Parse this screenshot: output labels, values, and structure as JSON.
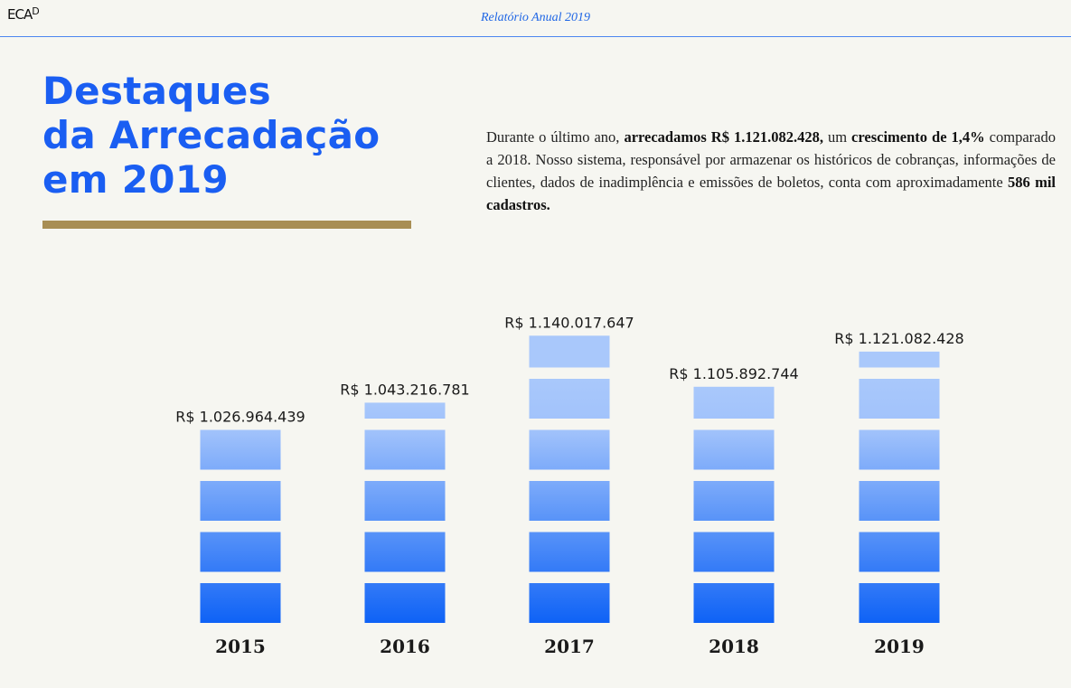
{
  "header": {
    "logo_main": "ECA",
    "logo_sup": "D",
    "report_title": "Relatório Anual 2019"
  },
  "title": {
    "line1": "Destaques",
    "line2": "da Arrecadação",
    "line3": "em 2019"
  },
  "summary": {
    "p1": "Durante o último ano, ",
    "b1": "arrecadamos R$ 1.121.082.428,",
    "p2": " um ",
    "b2": "crescimento de 1,4%",
    "p3": " comparado a 2018. Nosso sistema, responsável por armazenar os históricos de cobranças, informações de clientes, dados de inadimplência e emissões de boletos, conta com aproximadamente ",
    "b3": "586 mil cadastros."
  },
  "colors": {
    "brand_blue": "#1a5ef2",
    "gold": "#a88e54",
    "bar_top": "#a9c8fb",
    "bar_bottom": "#0e62f6"
  },
  "chart_data": {
    "type": "bar",
    "categories": [
      "2015",
      "2016",
      "2017",
      "2018",
      "2019"
    ],
    "values": [
      1026964439,
      1043216781,
      1140017647,
      1105892744,
      1121082428
    ],
    "value_labels": [
      "R$ 1.026.964.439",
      "R$ 1.043.216.781",
      "R$ 1.140.017.647",
      "R$ 1.105.892.744",
      "R$ 1.121.082.428"
    ],
    "segments_per_bar": [
      4,
      4.4,
      5.8,
      4.8,
      5.4
    ],
    "title": "",
    "xlabel": "",
    "ylabel": "",
    "grid": false,
    "legend": "none"
  }
}
